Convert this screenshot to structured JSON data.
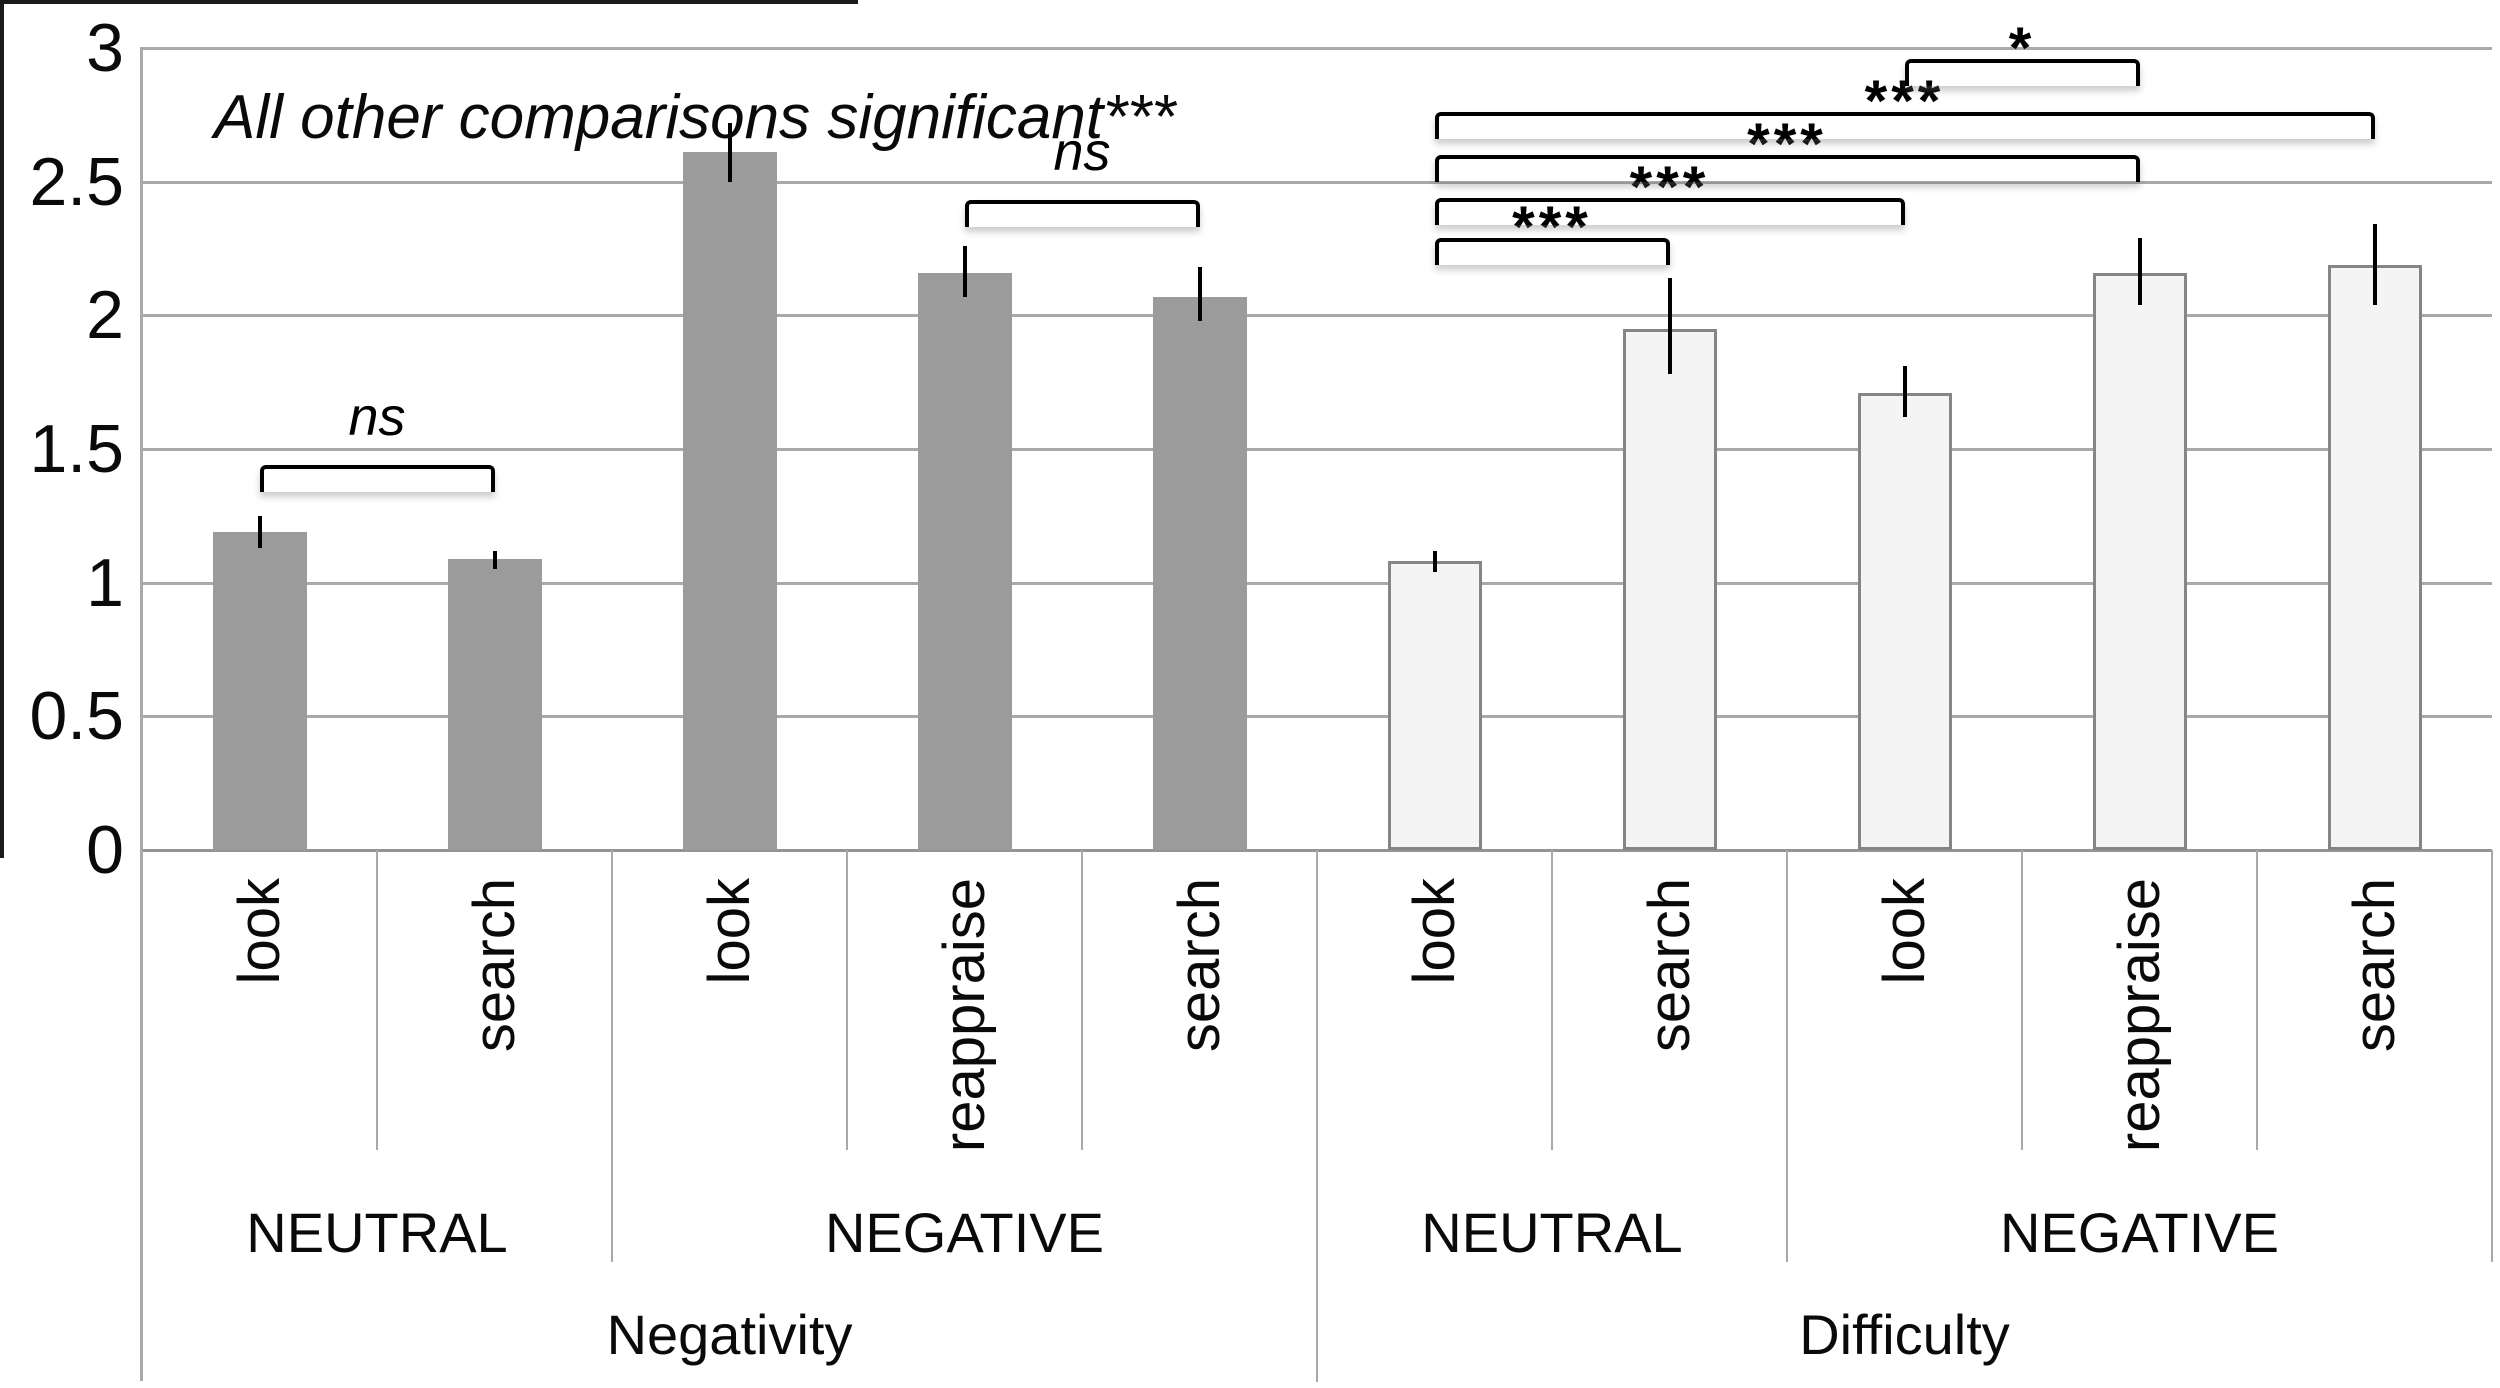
{
  "figure": {
    "kind": "grouped bar chart with significance brackets"
  },
  "chart_data": {
    "type": "bar",
    "title": "",
    "annotation": "All other comparisons significant***",
    "xlabel": "",
    "ylabel": "",
    "ylim": [
      0,
      3
    ],
    "yticks": [
      0,
      0.5,
      1,
      1.5,
      2,
      2.5,
      3
    ],
    "ytick_labels": [
      "0",
      "0.5",
      "1",
      "1.5",
      "2",
      "2.5",
      "3"
    ],
    "grid": true,
    "legend": "none",
    "factors": [
      {
        "label": "Negativity",
        "bar_style": "dark",
        "groups": [
          {
            "label": "NEUTRAL",
            "bars": [
              {
                "label": "look",
                "value": 1.19,
                "err_low": 1.13,
                "err_high": 1.25
              },
              {
                "label": "search",
                "value": 1.09,
                "err_low": 1.05,
                "err_high": 1.12
              }
            ]
          },
          {
            "label": "NEGATIVE",
            "bars": [
              {
                "label": "look",
                "value": 2.61,
                "err_low": 2.5,
                "err_high": 2.72
              },
              {
                "label": "reappraise",
                "value": 2.16,
                "err_low": 2.07,
                "err_high": 2.26
              },
              {
                "label": "search",
                "value": 2.07,
                "err_low": 1.98,
                "err_high": 2.18
              }
            ]
          }
        ]
      },
      {
        "label": "Difficulty",
        "bar_style": "light",
        "groups": [
          {
            "label": "NEUTRAL",
            "bars": [
              {
                "label": "look",
                "value": 1.08,
                "err_low": 1.04,
                "err_high": 1.12
              },
              {
                "label": "search",
                "value": 1.95,
                "err_low": 1.78,
                "err_high": 2.14
              }
            ]
          },
          {
            "label": "NEGATIVE",
            "bars": [
              {
                "label": "look",
                "value": 1.71,
                "err_low": 1.62,
                "err_high": 1.81
              },
              {
                "label": "reappraise",
                "value": 2.16,
                "err_low": 2.04,
                "err_high": 2.29
              },
              {
                "label": "search",
                "value": 2.19,
                "err_low": 2.04,
                "err_high": 2.34
              }
            ]
          }
        ]
      }
    ],
    "significance_brackets": [
      {
        "label": "ns",
        "style": "ns",
        "from_bar": 0,
        "to_bar": 1,
        "height_value": 1.44
      },
      {
        "label": "ns",
        "style": "ns",
        "from_bar": 3,
        "to_bar": 4,
        "height_value": 2.43
      },
      {
        "label": "***",
        "style": "stars",
        "from_bar": 5,
        "to_bar": 6,
        "height_value": 2.29
      },
      {
        "label": "***",
        "style": "stars",
        "from_bar": 5,
        "to_bar": 7,
        "height_value": 2.44
      },
      {
        "label": "***",
        "style": "stars",
        "from_bar": 5,
        "to_bar": 8,
        "height_value": 2.6
      },
      {
        "label": "***",
        "style": "stars",
        "from_bar": 5,
        "to_bar": 9,
        "height_value": 2.76
      },
      {
        "label": "*",
        "style": "stars",
        "from_bar": 7,
        "to_bar": 8,
        "height_value": 2.96
      }
    ],
    "colors": {
      "bar_dark_fill": "#9b9b9b",
      "bar_light_fill": "#f4f4f4",
      "bar_light_border": "#858585",
      "gridline": "#a9a9a9",
      "axis": "#949494",
      "bracket": "#000000",
      "error_bar": "#000000",
      "text": "#0a0a0a",
      "figure_border": "#1a1a1a",
      "background": "#ffffff"
    }
  }
}
